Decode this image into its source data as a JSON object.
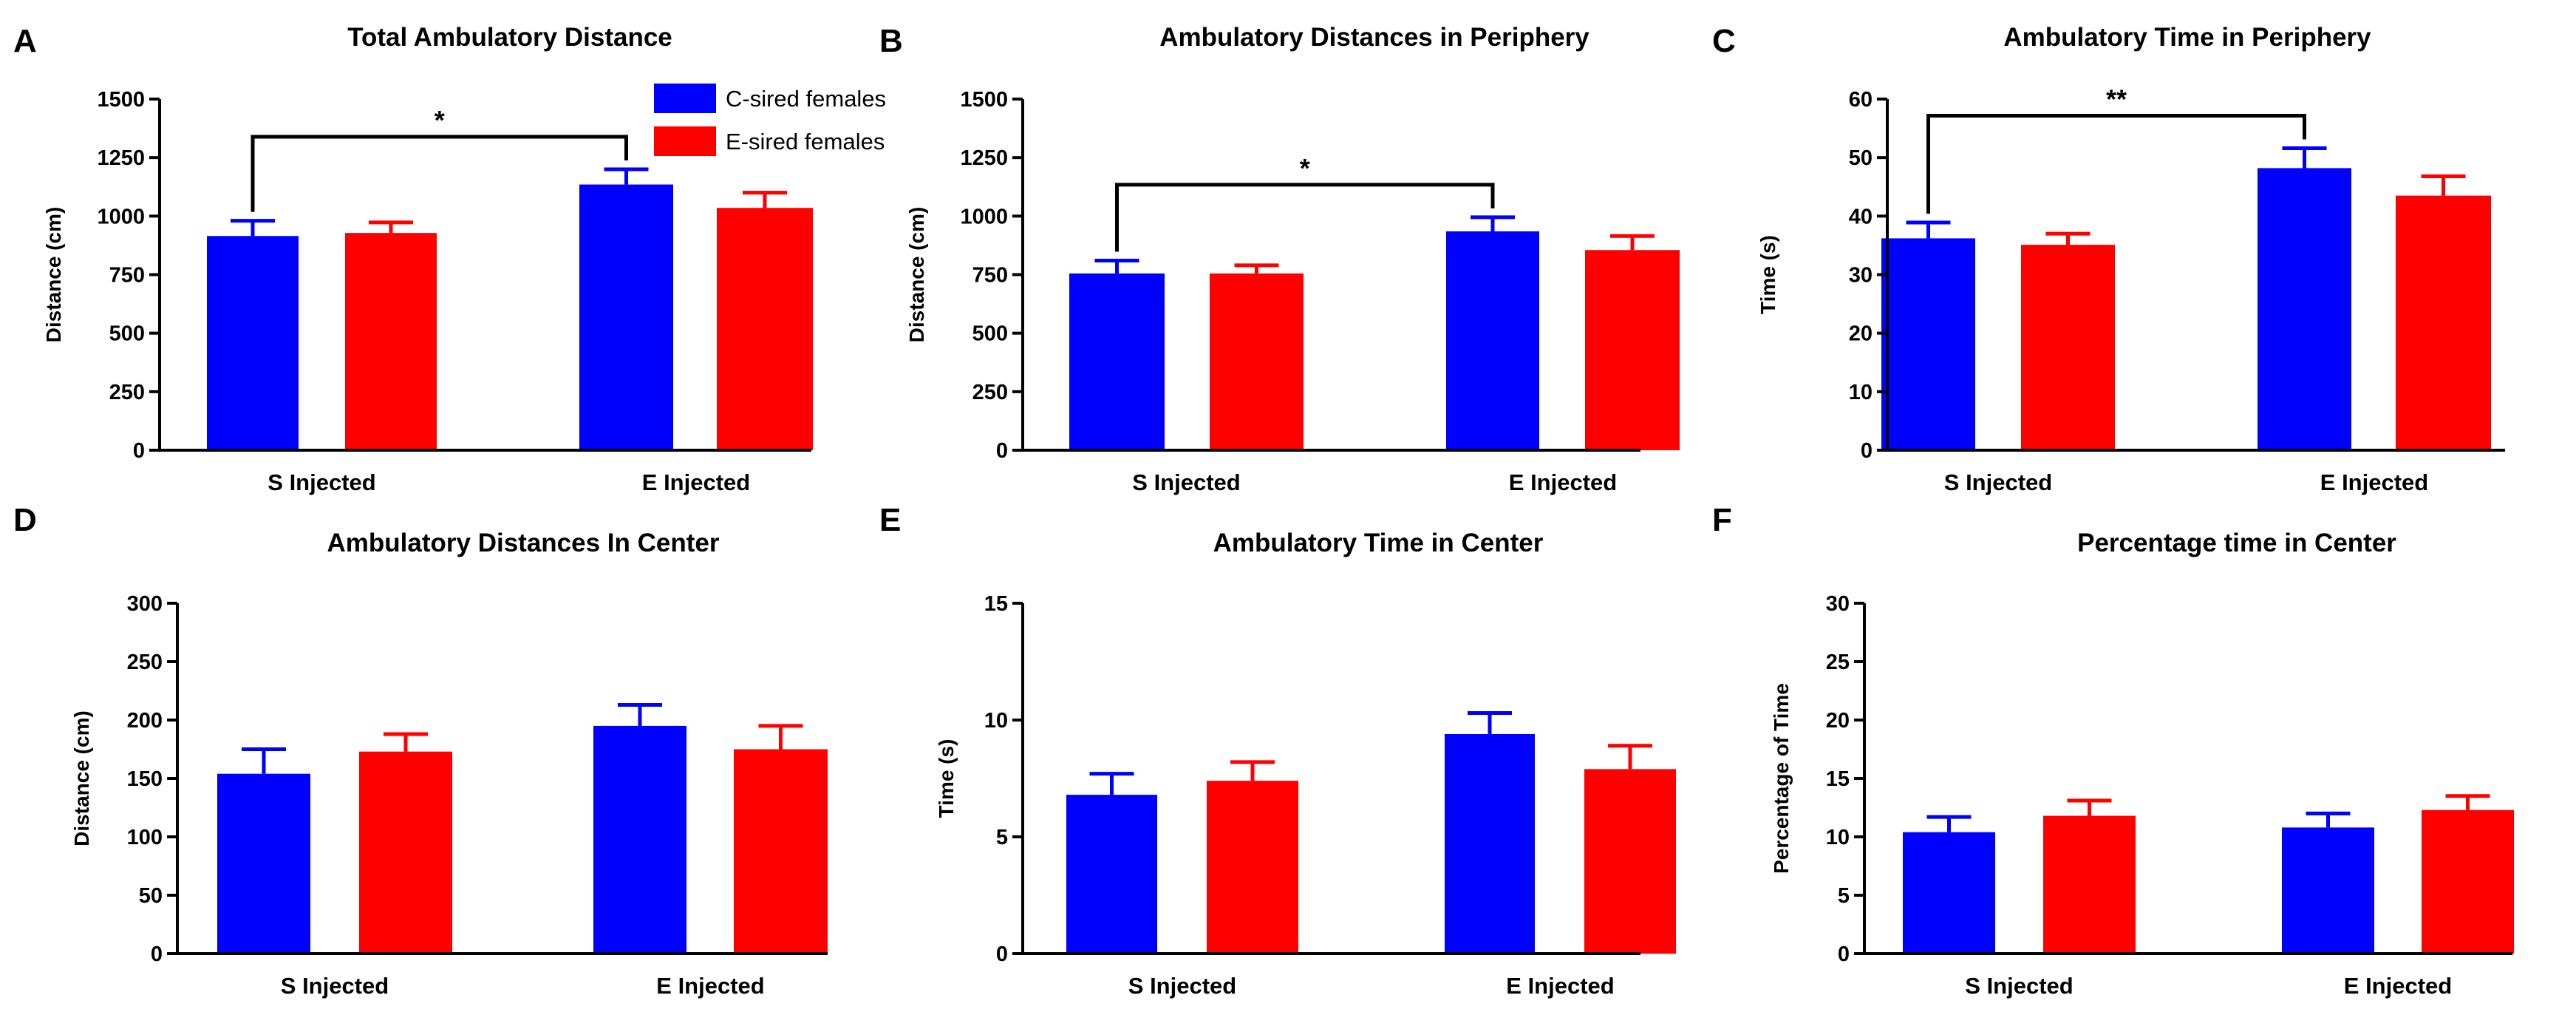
{
  "colors": {
    "series_c": "#0000ff",
    "series_e": "#ff0000",
    "axis": "#000000"
  },
  "legend": [
    {
      "label": "C-sired females",
      "color": "#0000ff"
    },
    {
      "label": "E-sired females",
      "color": "#ff0000"
    }
  ],
  "chart_data": [
    {
      "panel": "A",
      "type": "bar",
      "title": "Total Ambulatory Distance",
      "ylabel": "Distance (cm)",
      "categories": [
        "S Injected",
        "E Injected"
      ],
      "ylim": [
        0,
        1500
      ],
      "yticks": [
        0,
        250,
        500,
        750,
        1000,
        1250,
        1500
      ],
      "series": [
        {
          "name": "C-sired females",
          "values": [
            915,
            1135
          ],
          "errors": [
            65,
            65
          ]
        },
        {
          "name": "E-sired females",
          "values": [
            928,
            1035
          ],
          "errors": [
            45,
            65
          ]
        }
      ],
      "significance": [
        {
          "label": "*",
          "between": [
            "C-sired females S Injected",
            "C-sired females E Injected"
          ]
        }
      ]
    },
    {
      "panel": "B",
      "type": "bar",
      "title": "Ambulatory Distances in Periphery",
      "ylabel": "Distance (cm)",
      "categories": [
        "S Injected",
        "E Injected"
      ],
      "ylim": [
        0,
        1500
      ],
      "yticks": [
        0,
        250,
        500,
        750,
        1000,
        1250,
        1500
      ],
      "series": [
        {
          "name": "C-sired females",
          "values": [
            755,
            935
          ],
          "errors": [
            55,
            60
          ]
        },
        {
          "name": "E-sired females",
          "values": [
            755,
            855
          ],
          "errors": [
            35,
            60
          ]
        }
      ],
      "significance": [
        {
          "label": "*",
          "between": [
            "C-sired females S Injected",
            "C-sired females E Injected"
          ]
        }
      ]
    },
    {
      "panel": "C",
      "type": "bar",
      "title": "Ambulatory Time in Periphery",
      "ylabel": "Time (s)",
      "categories": [
        "S Injected",
        "E Injected"
      ],
      "ylim": [
        0,
        60
      ],
      "yticks": [
        0,
        10,
        20,
        30,
        40,
        50,
        60
      ],
      "series": [
        {
          "name": "C-sired females",
          "values": [
            36.2,
            48.2
          ],
          "errors": [
            2.7,
            3.4
          ]
        },
        {
          "name": "E-sired females",
          "values": [
            35.1,
            43.5
          ],
          "errors": [
            1.9,
            3.3
          ]
        }
      ],
      "significance": [
        {
          "label": "**",
          "between": [
            "C-sired females S Injected",
            "C-sired females E Injected"
          ]
        }
      ]
    },
    {
      "panel": "D",
      "type": "bar",
      "title": "Ambulatory Distances In Center",
      "ylabel": "Distance (cm)",
      "categories": [
        "S Injected",
        "E Injected"
      ],
      "ylim": [
        0,
        300
      ],
      "yticks": [
        0,
        50,
        100,
        150,
        200,
        250,
        300
      ],
      "series": [
        {
          "name": "C-sired females",
          "values": [
            154,
            195
          ],
          "errors": [
            21,
            18
          ]
        },
        {
          "name": "E-sired females",
          "values": [
            173,
            175
          ],
          "errors": [
            15,
            20
          ]
        }
      ],
      "significance": []
    },
    {
      "panel": "E",
      "type": "bar",
      "title": "Ambulatory Time in Center",
      "ylabel": "Time (s)",
      "categories": [
        "S Injected",
        "E Injected"
      ],
      "ylim": [
        0,
        15
      ],
      "yticks": [
        0,
        5,
        10,
        15
      ],
      "series": [
        {
          "name": "C-sired females",
          "values": [
            6.8,
            9.4
          ],
          "errors": [
            0.9,
            0.9
          ]
        },
        {
          "name": "E-sired females",
          "values": [
            7.4,
            7.9
          ],
          "errors": [
            0.8,
            1.0
          ]
        }
      ],
      "significance": []
    },
    {
      "panel": "F",
      "type": "bar",
      "title": "Percentage time in Center",
      "ylabel": "Percentage of Time",
      "categories": [
        "S Injected",
        "E Injected"
      ],
      "ylim": [
        0,
        30
      ],
      "yticks": [
        0,
        5,
        10,
        15,
        20,
        25,
        30
      ],
      "series": [
        {
          "name": "C-sired females",
          "values": [
            10.4,
            10.8
          ],
          "errors": [
            1.3,
            1.2
          ]
        },
        {
          "name": "E-sired females",
          "values": [
            11.8,
            12.3
          ],
          "errors": [
            1.3,
            1.2
          ]
        }
      ],
      "significance": []
    }
  ]
}
